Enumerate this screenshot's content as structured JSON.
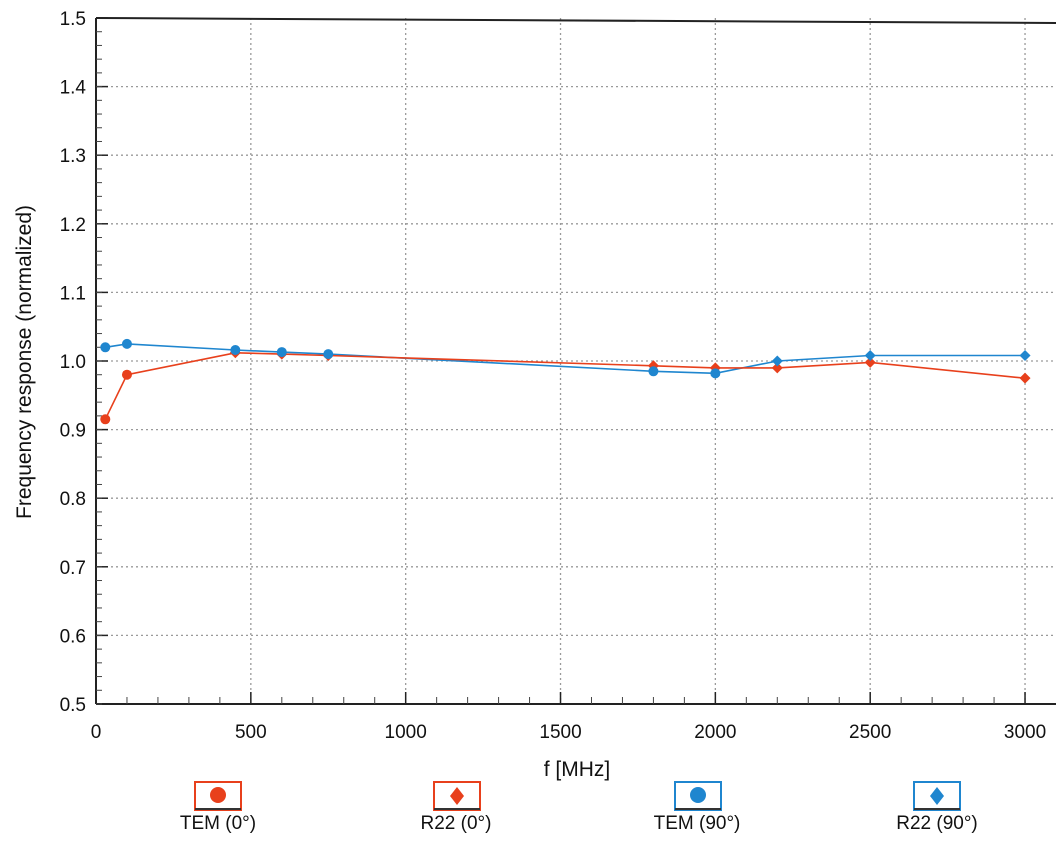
{
  "chart_data": {
    "type": "line",
    "title": "",
    "xlabel": "f [MHz]",
    "ylabel": "Frequency response (normalized)",
    "xlim": [
      0,
      3100
    ],
    "ylim": [
      0.5,
      1.5
    ],
    "grid": true,
    "x_ticks": [
      "0",
      "500",
      "1000",
      "1500",
      "2000",
      "2500",
      "3000"
    ],
    "x_tick_values": [
      0,
      500,
      1000,
      1500,
      2000,
      2500,
      3000
    ],
    "y_ticks": [
      "0.5",
      "0.6",
      "0.7",
      "0.8",
      "0.9",
      "1.0",
      "1.1",
      "1.2",
      "1.3",
      "1.4",
      "1.5"
    ],
    "y_tick_values": [
      0.5,
      0.6,
      0.7,
      0.8,
      0.9,
      1.0,
      1.1,
      1.2,
      1.3,
      1.4,
      1.5
    ],
    "legend_position": "bottom",
    "series": [
      {
        "name": "TEM (0°)",
        "marker": "circle",
        "color": "#e8401c",
        "x": [
          30,
          100
        ],
        "y": [
          0.915,
          0.98
        ]
      },
      {
        "name": "R22 (0°)",
        "marker": "diamond",
        "color": "#e8401c",
        "x": [
          450,
          600,
          750,
          1800,
          2000,
          2200,
          2500,
          3000
        ],
        "y": [
          1.012,
          1.01,
          1.008,
          0.993,
          0.99,
          0.99,
          0.998,
          0.975
        ]
      },
      {
        "name": "TEM (90°)",
        "marker": "circle",
        "color": "#1f86cf",
        "x": [
          30,
          100,
          450,
          600,
          750,
          1800,
          2000
        ],
        "y": [
          1.02,
          1.025,
          1.016,
          1.013,
          1.01,
          0.985,
          0.982
        ]
      },
      {
        "name": "R22 (90°)",
        "marker": "diamond",
        "color": "#1f86cf",
        "x": [
          2200,
          2500,
          3000
        ],
        "y": [
          1.0,
          1.008,
          1.008
        ]
      }
    ]
  }
}
